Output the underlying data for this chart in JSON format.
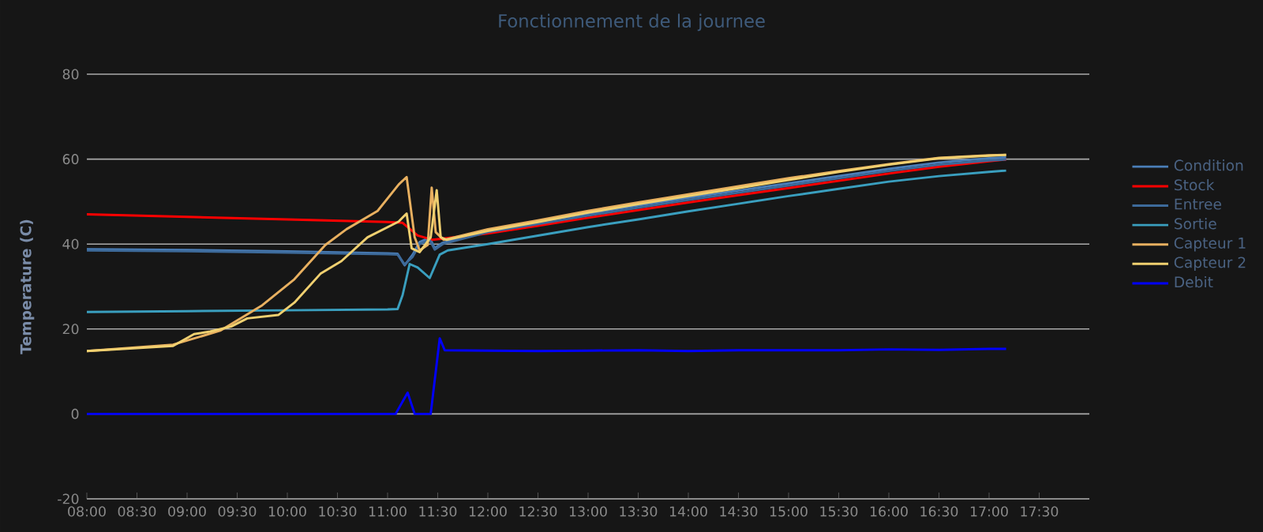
{
  "chart_data": {
    "type": "line",
    "title": "Fonctionnement de la journee",
    "ylabel": "Temperature (C)",
    "xlim": [
      8,
      18
    ],
    "ylim": [
      -20,
      80
    ],
    "yticks": [
      -20,
      0,
      20,
      40,
      60,
      80
    ],
    "xticks": [
      {
        "value": 8,
        "label": "08:00"
      },
      {
        "value": 8.5,
        "label": "08:30"
      },
      {
        "value": 9,
        "label": "09:00"
      },
      {
        "value": 9.5,
        "label": "09:30"
      },
      {
        "value": 10,
        "label": "10:00"
      },
      {
        "value": 10.5,
        "label": "10:30"
      },
      {
        "value": 11,
        "label": "11:00"
      },
      {
        "value": 11.5,
        "label": "11:30"
      },
      {
        "value": 12,
        "label": "12:00"
      },
      {
        "value": 12.5,
        "label": "12:30"
      },
      {
        "value": 13,
        "label": "13:00"
      },
      {
        "value": 13.5,
        "label": "13:30"
      },
      {
        "value": 14,
        "label": "14:00"
      },
      {
        "value": 14.5,
        "label": "14:30"
      },
      {
        "value": 15,
        "label": "15:00"
      },
      {
        "value": 15.5,
        "label": "15:30"
      },
      {
        "value": 16,
        "label": "16:00"
      },
      {
        "value": 16.5,
        "label": "16:30"
      },
      {
        "value": 17,
        "label": "17:00"
      },
      {
        "value": 17.5,
        "label": "17:30"
      }
    ],
    "grid": "y",
    "legend": "right",
    "line_style": "solid",
    "series": [
      {
        "name": "Condition",
        "color": "#4a7eb8",
        "x": [
          8,
          9,
          10,
          11,
          11.1,
          11.17,
          11.25,
          11.32,
          11.42,
          11.47,
          11.55,
          12,
          12.5,
          13,
          13.5,
          14,
          14.5,
          15,
          15.5,
          16,
          16.5,
          17,
          17.17
        ],
        "values": [
          38.8,
          38.6,
          38.3,
          37.8,
          37.7,
          35,
          37.5,
          40.5,
          41.5,
          39,
          40.3,
          43.3,
          45.2,
          47.2,
          49.1,
          50.9,
          52.6,
          54.3,
          56,
          57.7,
          59.2,
          60.2,
          60.4
        ]
      },
      {
        "name": "Stock",
        "color": "#ff0000",
        "x": [
          8,
          9,
          10,
          11,
          11.15,
          11.3,
          11.45,
          12,
          12.5,
          13,
          13.5,
          14,
          14.5,
          15,
          15.5,
          16,
          16.5,
          17,
          17.17
        ],
        "values": [
          47,
          46.4,
          45.8,
          45.2,
          45,
          42,
          41,
          42.5,
          44.3,
          46.2,
          48,
          49.8,
          51.5,
          53.2,
          54.9,
          56.6,
          58.2,
          59.5,
          59.9
        ]
      },
      {
        "name": "Entree",
        "color": "#3d6a9a",
        "x": [
          8,
          9,
          10,
          11,
          11.1,
          11.17,
          11.25,
          11.32,
          11.42,
          11.47,
          11.55,
          12,
          12.5,
          13,
          13.5,
          14,
          14.5,
          15,
          15.5,
          16,
          16.5,
          17,
          17.17
        ],
        "values": [
          38.5,
          38.3,
          38,
          37.6,
          37.5,
          35.2,
          37,
          40,
          41,
          38.7,
          40,
          42.8,
          44.7,
          46.7,
          48.6,
          50.4,
          52.1,
          53.8,
          55.5,
          57.2,
          58.7,
          59.7,
          59.9
        ]
      },
      {
        "name": "Sortie",
        "color": "#3a9fbf",
        "x": [
          8,
          9,
          10,
          11,
          11.1,
          11.15,
          11.22,
          11.3,
          11.42,
          11.52,
          11.6,
          12,
          12.5,
          13,
          13.5,
          14,
          14.5,
          15,
          15.5,
          16,
          16.5,
          17,
          17.17
        ],
        "values": [
          24,
          24.2,
          24.4,
          24.6,
          24.7,
          28,
          35.3,
          34.5,
          32,
          37.5,
          38.5,
          40,
          42,
          44,
          45.8,
          47.7,
          49.5,
          51.3,
          53,
          54.7,
          56,
          57,
          57.3
        ]
      },
      {
        "name": "Capteur 1",
        "color": "#e8b060",
        "x": [
          8,
          8.86,
          9.33,
          9.75,
          10.07,
          10.38,
          10.59,
          10.9,
          11.11,
          11.19,
          11.27,
          11.32,
          11.4,
          11.44,
          11.48,
          11.56,
          12,
          12.5,
          13,
          13.5,
          14,
          14.5,
          15,
          15.5,
          16,
          16.5,
          17,
          17.17
        ],
        "values": [
          14.8,
          16.3,
          19.6,
          25.6,
          31.7,
          39.8,
          43.5,
          47.8,
          54,
          55.8,
          41.6,
          38.5,
          39.8,
          53.3,
          42.8,
          41,
          43.5,
          45.6,
          47.8,
          49.8,
          51.7,
          53.6,
          55.5,
          57.2,
          58.8,
          60.3,
          60.9,
          61
        ]
      },
      {
        "name": "Capteur 2",
        "color": "#f0d070",
        "x": [
          8,
          8.86,
          9.07,
          9.23,
          9.44,
          9.6,
          9.91,
          10.07,
          10.33,
          10.54,
          10.8,
          11.11,
          11.19,
          11.24,
          11.32,
          11.43,
          11.49,
          11.53,
          11.59,
          12,
          12.5,
          13,
          13.5,
          14,
          14.5,
          15,
          15.5,
          16,
          16.5,
          17,
          17.17
        ],
        "values": [
          14.8,
          16,
          18.8,
          19.4,
          20.6,
          22.5,
          23.3,
          26.2,
          33,
          36,
          41.6,
          45.3,
          47.2,
          39,
          38.1,
          41.6,
          52.7,
          41.6,
          41,
          43.1,
          45.2,
          47.4,
          49.4,
          51.3,
          53.2,
          55.1,
          57,
          58.7,
          60.2,
          60.8,
          61
        ]
      },
      {
        "name": "Debit",
        "color": "#0000ff",
        "x": [
          8,
          9,
          10,
          11,
          11.08,
          11.2,
          11.27,
          11.43,
          11.52,
          11.57,
          12,
          12.5,
          13,
          13.5,
          14,
          14.5,
          15,
          15.5,
          16,
          16.5,
          17,
          17.17
        ],
        "values": [
          0,
          0,
          0,
          0,
          0,
          5,
          0,
          0,
          17.8,
          15,
          14.9,
          14.8,
          14.9,
          15,
          14.8,
          15,
          15,
          15,
          15.2,
          15.1,
          15.3,
          15.3
        ]
      }
    ]
  }
}
